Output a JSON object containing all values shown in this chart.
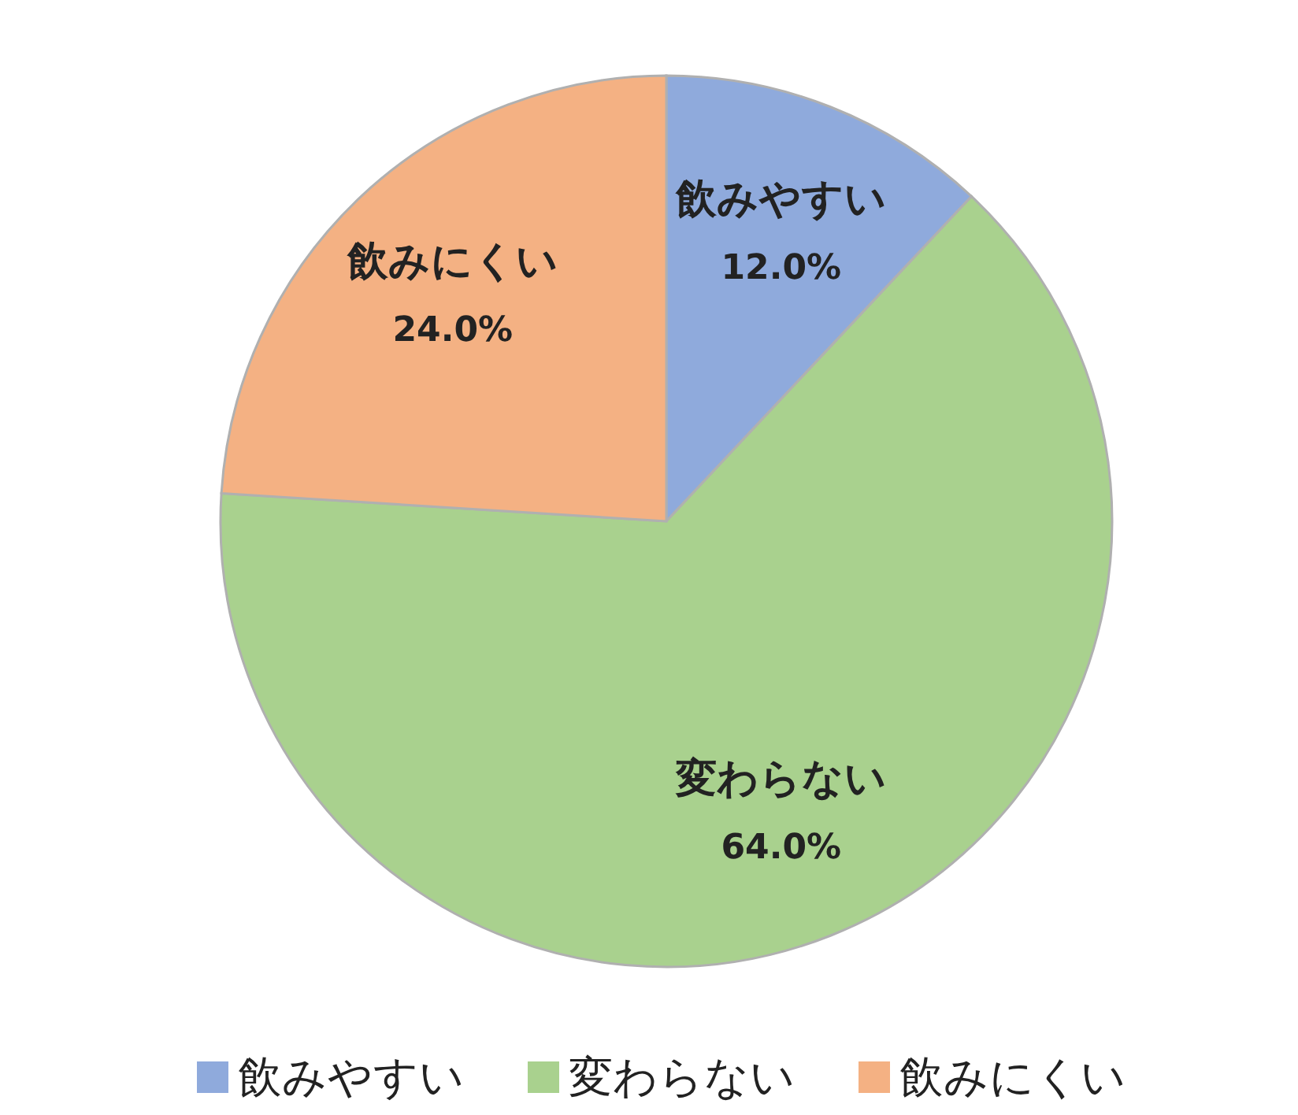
{
  "chart_data": {
    "type": "pie",
    "categories": [
      "飲みやすい",
      "変わらない",
      "飲みにくい"
    ],
    "values": [
      12.0,
      64.0,
      24.0
    ],
    "colors": [
      "#8faadc",
      "#a9d18e",
      "#f4b183"
    ],
    "value_labels": [
      "12.0%",
      "64.0%",
      "24.0%"
    ],
    "legend": "bottom"
  }
}
